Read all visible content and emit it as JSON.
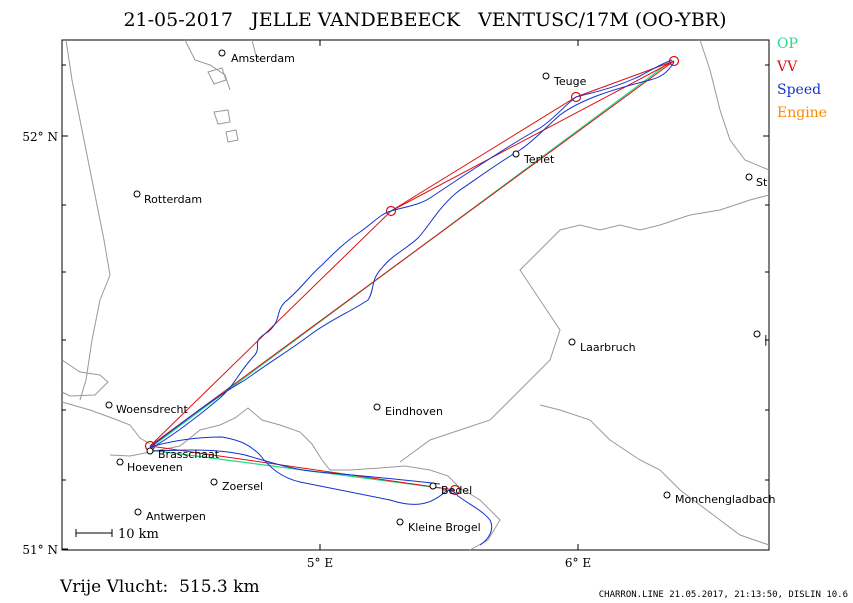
{
  "title": "21-05-2017   JELLE VANDEBEECK   VENTUSC/17M (OO-YBR)",
  "legend": [
    {
      "label": "OP",
      "color": "#22dd88"
    },
    {
      "label": "VV",
      "color": "#dd1111"
    },
    {
      "label": "Speed",
      "color": "#1133cc"
    },
    {
      "label": "Engine",
      "color": "#ff8800"
    }
  ],
  "axes": {
    "lat_labels": [
      "52° N",
      "51° N"
    ],
    "lon_labels": [
      "5° E",
      "6° E"
    ]
  },
  "cities": [
    "Amsterdam",
    "Rotterdam",
    "Teuge",
    "Terlet",
    "Woensdrecht",
    "Eindhoven",
    "Laarbruch",
    "Brasschaat",
    "Hoevenen",
    "Zoersel",
    "Bedel",
    "Antwerpen",
    "Kleine Brogel",
    "Monchengladbach",
    "St"
  ],
  "scale_bar": "10 km",
  "footer": {
    "distance": "Vrije Vlucht:  515.3 km",
    "credit": "CHARRON.LINE 21.05.2017, 21:13:50, DISLIN 10.6"
  }
}
